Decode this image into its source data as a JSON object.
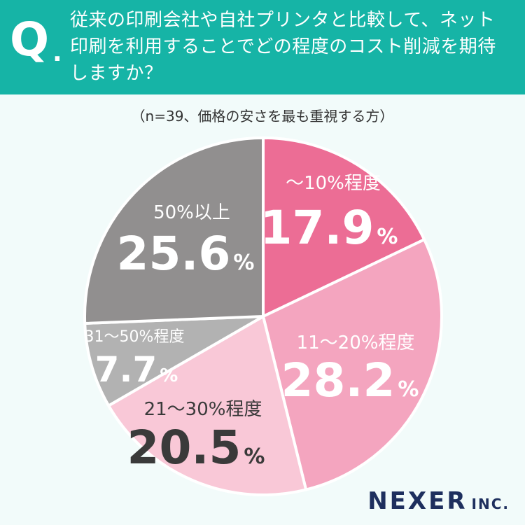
{
  "header": {
    "q_mark": "Q",
    "q_dot": ".",
    "question_lines": [
      "従来の印刷会社や自社プリンタと比較して、ネット",
      "印刷を利用することでどの程度のコスト削減を期待",
      "しますか？"
    ]
  },
  "subtitle": "（n=39、価格の安さを最も重視する方）",
  "chart_data": {
    "type": "pie",
    "unit": "%",
    "slices": [
      {
        "label": "〜10%程度",
        "value": 17.9,
        "value_text": "17.9",
        "color": "#ec6d95",
        "label_color": "#ffffff"
      },
      {
        "label": "11〜20%程度",
        "value": 28.2,
        "value_text": "28.2",
        "color": "#f4a5bf",
        "label_color": "#ffffff"
      },
      {
        "label": "21〜30%程度",
        "value": 20.5,
        "value_text": "20.5",
        "color": "#f9c8d7",
        "label_color": "#3a3a3a"
      },
      {
        "label": "31〜50%程度",
        "value": 7.7,
        "value_text": "7.7",
        "color": "#b2b2b2",
        "label_color": "#ffffff"
      },
      {
        "label": "50%以上",
        "value": 25.6,
        "value_text": "25.6",
        "color": "#918f8f",
        "label_color": "#ffffff"
      }
    ]
  },
  "logo": {
    "main": "NEXER",
    "sub": "INC."
  }
}
